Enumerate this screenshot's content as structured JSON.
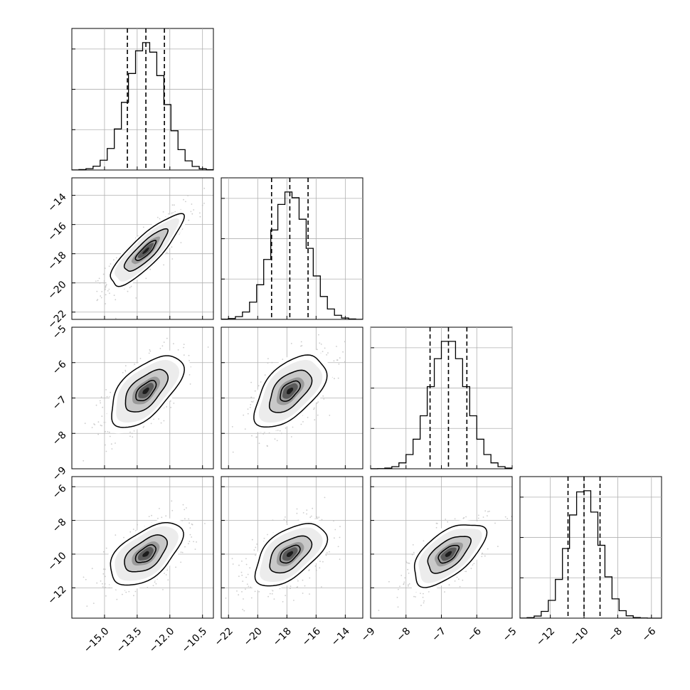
{
  "chart_data": {
    "type": "corner",
    "parameters": 4,
    "histogram_bins": 20,
    "contour_levels": 3,
    "scatter_color": "#bbbbbb",
    "hist_color": "#000000",
    "grid": true,
    "tick_labels": {
      "x0": [
        "−15.0",
        "−13.5",
        "−12.0",
        "−10.5"
      ],
      "y1": [
        "−22",
        "−20",
        "−18",
        "−16",
        "−14"
      ],
      "x1": [
        "−22",
        "−20",
        "−18",
        "−16",
        "−14"
      ],
      "y2": [
        "−9",
        "−8",
        "−7",
        "−6",
        "−5"
      ],
      "x2": [
        "−9",
        "−8",
        "−7",
        "−6",
        "−5"
      ],
      "y3": [
        "−12",
        "−10",
        "−8",
        "−6"
      ],
      "x3": [
        "−12",
        "−10",
        "−8",
        "−6"
      ]
    },
    "ranges": [
      [
        -16.5,
        -10
      ],
      [
        -22.5,
        -12.8
      ],
      [
        -9,
        -5
      ],
      [
        -13.8,
        -5.4
      ]
    ],
    "ticks": [
      [
        -15,
        -13.5,
        -12,
        -10.5
      ],
      [
        -22,
        -20,
        -18,
        -16,
        -14
      ],
      [
        -9,
        -8,
        -7,
        -6,
        -5
      ],
      [
        -12,
        -10,
        -8,
        -6
      ]
    ],
    "means": [
      -13.1,
      -17.8,
      -6.8,
      -10.0
    ],
    "stds": [
      0.85,
      1.25,
      0.52,
      0.95
    ],
    "quantiles": [
      {
        "q16": -13.95,
        "q50": -13.1,
        "q84": -12.25
      },
      {
        "q16": -19.05,
        "q50": -17.8,
        "q84": -16.55
      },
      {
        "q16": -7.32,
        "q50": -6.8,
        "q84": -6.28
      },
      {
        "q16": -10.95,
        "q50": -10.0,
        "q84": -9.05
      }
    ],
    "correlations": [
      [
        1.0,
        0.85,
        0.6,
        0.55
      ],
      [
        0.85,
        1.0,
        0.55,
        0.55
      ],
      [
        0.6,
        0.55,
        1.0,
        0.6
      ],
      [
        0.55,
        0.55,
        0.6,
        1.0
      ]
    ]
  }
}
